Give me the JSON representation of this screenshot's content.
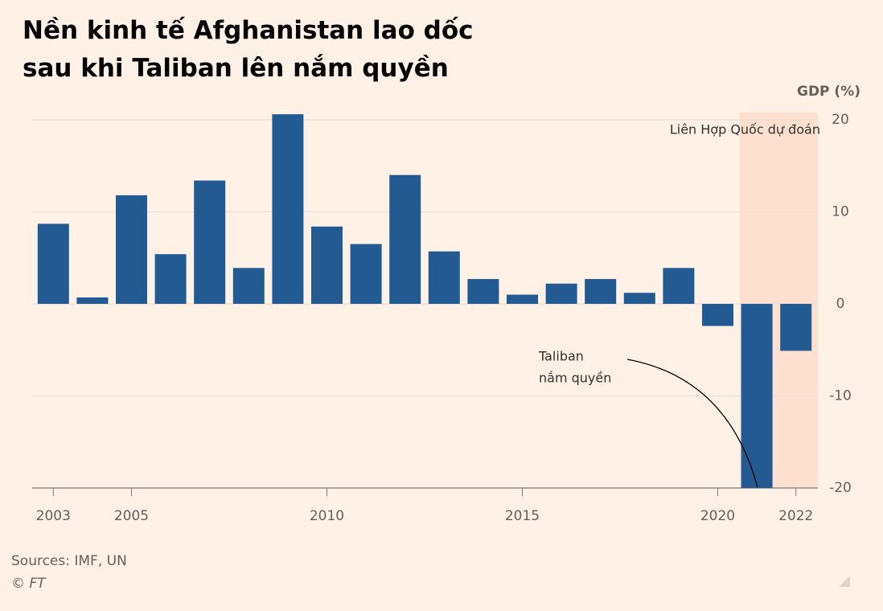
{
  "chart_data": {
    "type": "bar",
    "title_lines": [
      "Nền kinh tế Afghanistan lao dốc",
      "sau khi Taliban lên nắm quyền"
    ],
    "y_axis_label": "GDP (%)",
    "categories": [
      "2003",
      null,
      "2005",
      null,
      null,
      null,
      null,
      "2010",
      null,
      null,
      null,
      null,
      "2015",
      null,
      null,
      null,
      null,
      "2020",
      null,
      "2022"
    ],
    "values": [
      8.7,
      0.7,
      11.8,
      5.4,
      13.4,
      3.9,
      20.6,
      8.4,
      6.5,
      14.0,
      5.7,
      2.7,
      1.0,
      2.2,
      2.7,
      1.2,
      3.9,
      -2.4,
      -20,
      -5.1
    ],
    "color": "#235a91",
    "ylim": [
      -20,
      21
    ],
    "yticks": [
      -20,
      -10,
      0,
      10,
      20
    ],
    "grid": true,
    "annotations": {
      "forecast": "Liên Hợp Quốc dự đoán",
      "taliban": [
        "Taliban",
        "nắm quyền"
      ]
    },
    "source": "Sources: IMF, UN",
    "credit": "© FT"
  }
}
